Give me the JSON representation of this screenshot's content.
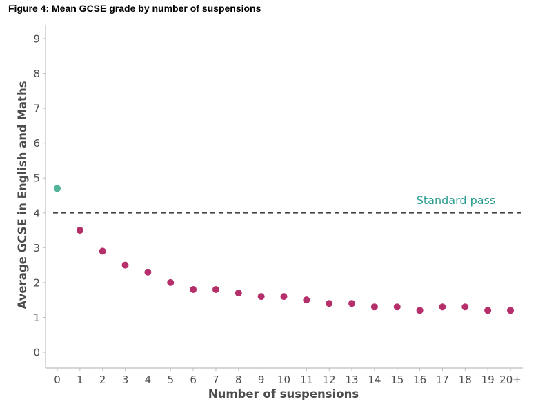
{
  "figure_title": "Figure 4: Mean GCSE grade by number of suspensions",
  "colors": {
    "zero_point": "#52b49a",
    "points": "#b5306a",
    "reference_line": "#444444",
    "reference_label": "#2a9d8f",
    "axis": "#bdbdbd",
    "tick_text": "#4d4d4d"
  },
  "chart_data": {
    "type": "scatter",
    "title": "Mean GCSE grade by number of suspensions",
    "xlabel": "Number of suspensions",
    "ylabel": "Average GCSE in English and Maths",
    "categories": [
      "0",
      "1",
      "2",
      "3",
      "4",
      "5",
      "6",
      "7",
      "8",
      "9",
      "10",
      "11",
      "12",
      "13",
      "14",
      "15",
      "16",
      "17",
      "18",
      "19",
      "20+"
    ],
    "values": [
      4.7,
      3.5,
      2.9,
      2.5,
      2.3,
      2.0,
      1.8,
      1.8,
      1.7,
      1.6,
      1.6,
      1.5,
      1.4,
      1.4,
      1.3,
      1.3,
      1.2,
      1.3,
      1.3,
      1.2,
      1.2
    ],
    "highlight_index": 0,
    "ylim": [
      0,
      9
    ],
    "yticks": [
      "0",
      "1",
      "2",
      "3",
      "4",
      "5",
      "6",
      "7",
      "8",
      "9"
    ],
    "grid": false,
    "reference_line": {
      "value": 4,
      "label": "Standard pass",
      "style": "dashed"
    }
  }
}
